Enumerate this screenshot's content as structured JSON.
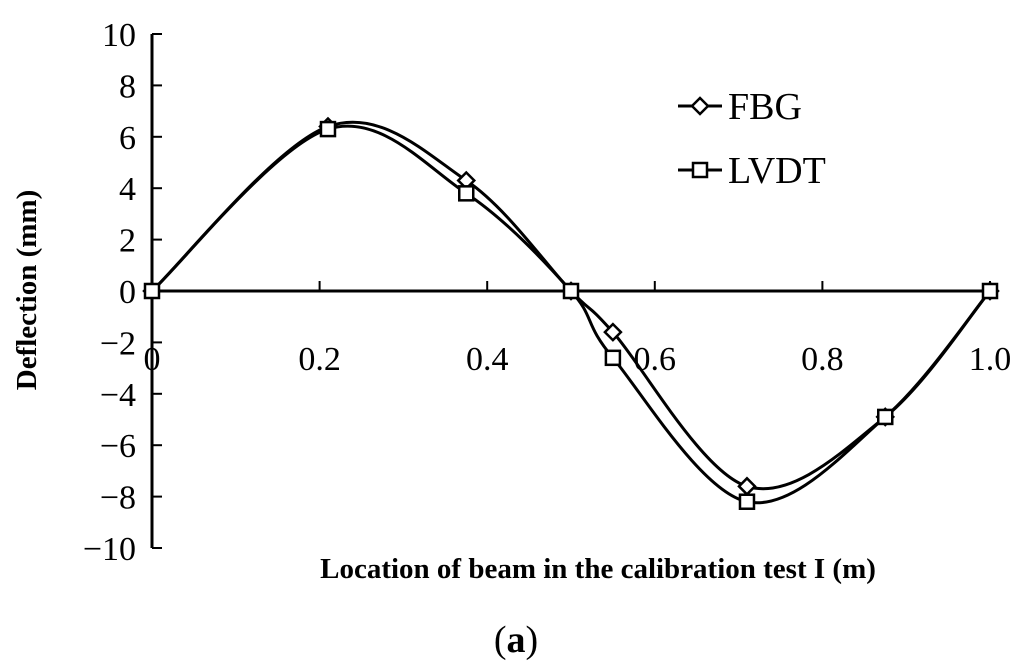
{
  "chart_data": {
    "type": "line",
    "title": "",
    "xlabel": "Location of beam in the calibration test I (m)",
    "ylabel": "Deflection (mm)",
    "xlim": [
      0,
      1.0
    ],
    "ylim": [
      -10,
      10
    ],
    "x_ticks": [
      "0",
      "0.2",
      "0.4",
      "0.6",
      "0.8",
      "1.0"
    ],
    "y_ticks": [
      "10",
      "8",
      "6",
      "4",
      "2",
      "0",
      "-2",
      "-4",
      "-6",
      "-8",
      "-10"
    ],
    "grid": false,
    "legend_position": "top-right",
    "series": [
      {
        "name": "FBG",
        "marker": "diamond",
        "x": [
          0,
          0.21,
          0.375,
          0.5,
          0.55,
          0.71,
          0.875,
          1.0
        ],
        "y": [
          0,
          6.4,
          4.3,
          0,
          -1.6,
          -7.6,
          -4.9,
          0
        ]
      },
      {
        "name": "LVDT",
        "marker": "square",
        "x": [
          0,
          0.21,
          0.375,
          0.5,
          0.55,
          0.71,
          0.875,
          1.0
        ],
        "y": [
          0,
          6.3,
          3.8,
          0,
          -2.6,
          -8.2,
          -4.9,
          0
        ]
      }
    ]
  },
  "panel_label": {
    "open": "(",
    "letter": "a",
    "close": ")"
  }
}
